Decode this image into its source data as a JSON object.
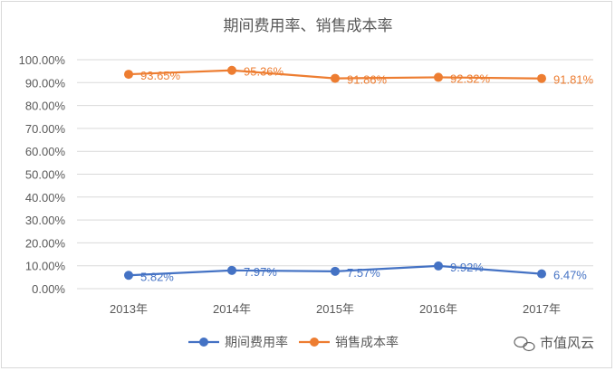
{
  "chart_data": {
    "type": "line",
    "title": "期间费用率、销售成本率",
    "categories": [
      "2013年",
      "2014年",
      "2015年",
      "2016年",
      "2017年"
    ],
    "ylim": [
      0,
      100
    ],
    "yticks": [
      "0.00%",
      "10.00%",
      "20.00%",
      "30.00%",
      "40.00%",
      "50.00%",
      "60.00%",
      "70.00%",
      "80.00%",
      "90.00%",
      "100.00%"
    ],
    "grid": true,
    "legend": "bottom",
    "series": [
      {
        "name": "期间费用率",
        "color": "#4472c4",
        "values": [
          5.82,
          7.97,
          7.57,
          9.92,
          6.47
        ],
        "labels": [
          "5.82%",
          "7.97%",
          "7.57%",
          "9.92%",
          "6.47%"
        ]
      },
      {
        "name": "销售成本率",
        "color": "#ed7d31",
        "values": [
          93.65,
          95.36,
          91.86,
          92.32,
          91.81
        ],
        "labels": [
          "93.65%",
          "95.36%",
          "91.86%",
          "92.32%",
          "91.81%"
        ]
      }
    ]
  },
  "watermark": {
    "text": "市值风云",
    "icon": "wechat-icon"
  }
}
